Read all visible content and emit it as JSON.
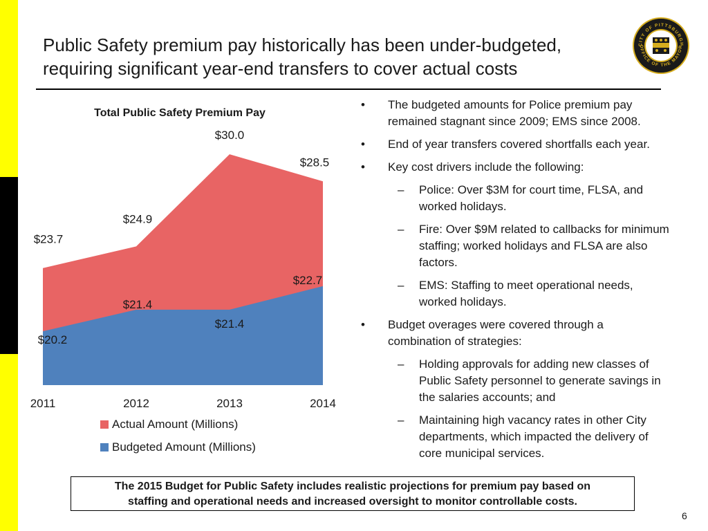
{
  "slide": {
    "title_line1": "Public Safety premium pay historically has been under-budgeted,",
    "title_line2": "requiring significant year-end transfers to cover actual costs",
    "page_number": "6",
    "callout_line1": "The 2015 Budget for Public Safety includes realistic projections for premium pay based on",
    "callout_line2": "staffing and operational needs and increased oversight to monitor controllable costs."
  },
  "seal": {
    "top_text": "CITY OF PITTSBURGH",
    "bottom_text": "OFFICE OF THE MAYOR"
  },
  "colors": {
    "actual": "#e86464",
    "budgeted": "#4f81bd",
    "side_yellow": "#ffff00",
    "side_black": "#000000"
  },
  "chart_data": {
    "type": "area",
    "title": "Total Public Safety Premium Pay",
    "categories": [
      "2011",
      "2012",
      "2013",
      "2014"
    ],
    "series": [
      {
        "name": "Actual Amount (Millions)",
        "values": [
          23.7,
          24.9,
          30.0,
          28.5
        ],
        "labels": [
          "$23.7",
          "$24.9",
          "$30.0",
          "$28.5"
        ]
      },
      {
        "name": "Budgeted Amount (Millions)",
        "values": [
          20.2,
          21.4,
          21.4,
          22.7
        ],
        "labels": [
          "$20.2",
          "$21.4",
          "$21.4",
          "$22.7"
        ]
      }
    ],
    "legend_position": "bottom",
    "ylim": [
      15.5,
      30.5
    ],
    "grid": false
  },
  "bullets": [
    {
      "type": "bullet",
      "marker": "•",
      "text": "The budgeted amounts for Police premium pay remained stagnant since 2009; EMS since 2008."
    },
    {
      "type": "bullet",
      "marker": "•",
      "text": "End of year transfers covered shortfalls each year."
    },
    {
      "type": "bullet",
      "marker": "•",
      "text": "Key cost drivers include the following:"
    },
    {
      "type": "sub",
      "marker": "–",
      "text": "Police: Over $3M for court time, FLSA, and worked holidays."
    },
    {
      "type": "sub",
      "marker": "–",
      "text": "Fire: Over $9M related to callbacks for minimum staffing; worked holidays and FLSA are also factors."
    },
    {
      "type": "sub",
      "marker": "–",
      "text": "EMS: Staffing to meet operational needs, worked holidays."
    },
    {
      "type": "bullet",
      "marker": "•",
      "text": "Budget overages were covered through a combination of strategies:"
    },
    {
      "type": "sub",
      "marker": "–",
      "text": "Holding approvals for adding new classes of Public Safety personnel to generate savings in the salaries accounts; and"
    },
    {
      "type": "sub",
      "marker": "–",
      "text": "Maintaining high vacancy rates in other City departments, which impacted the delivery of core municipal services."
    }
  ]
}
